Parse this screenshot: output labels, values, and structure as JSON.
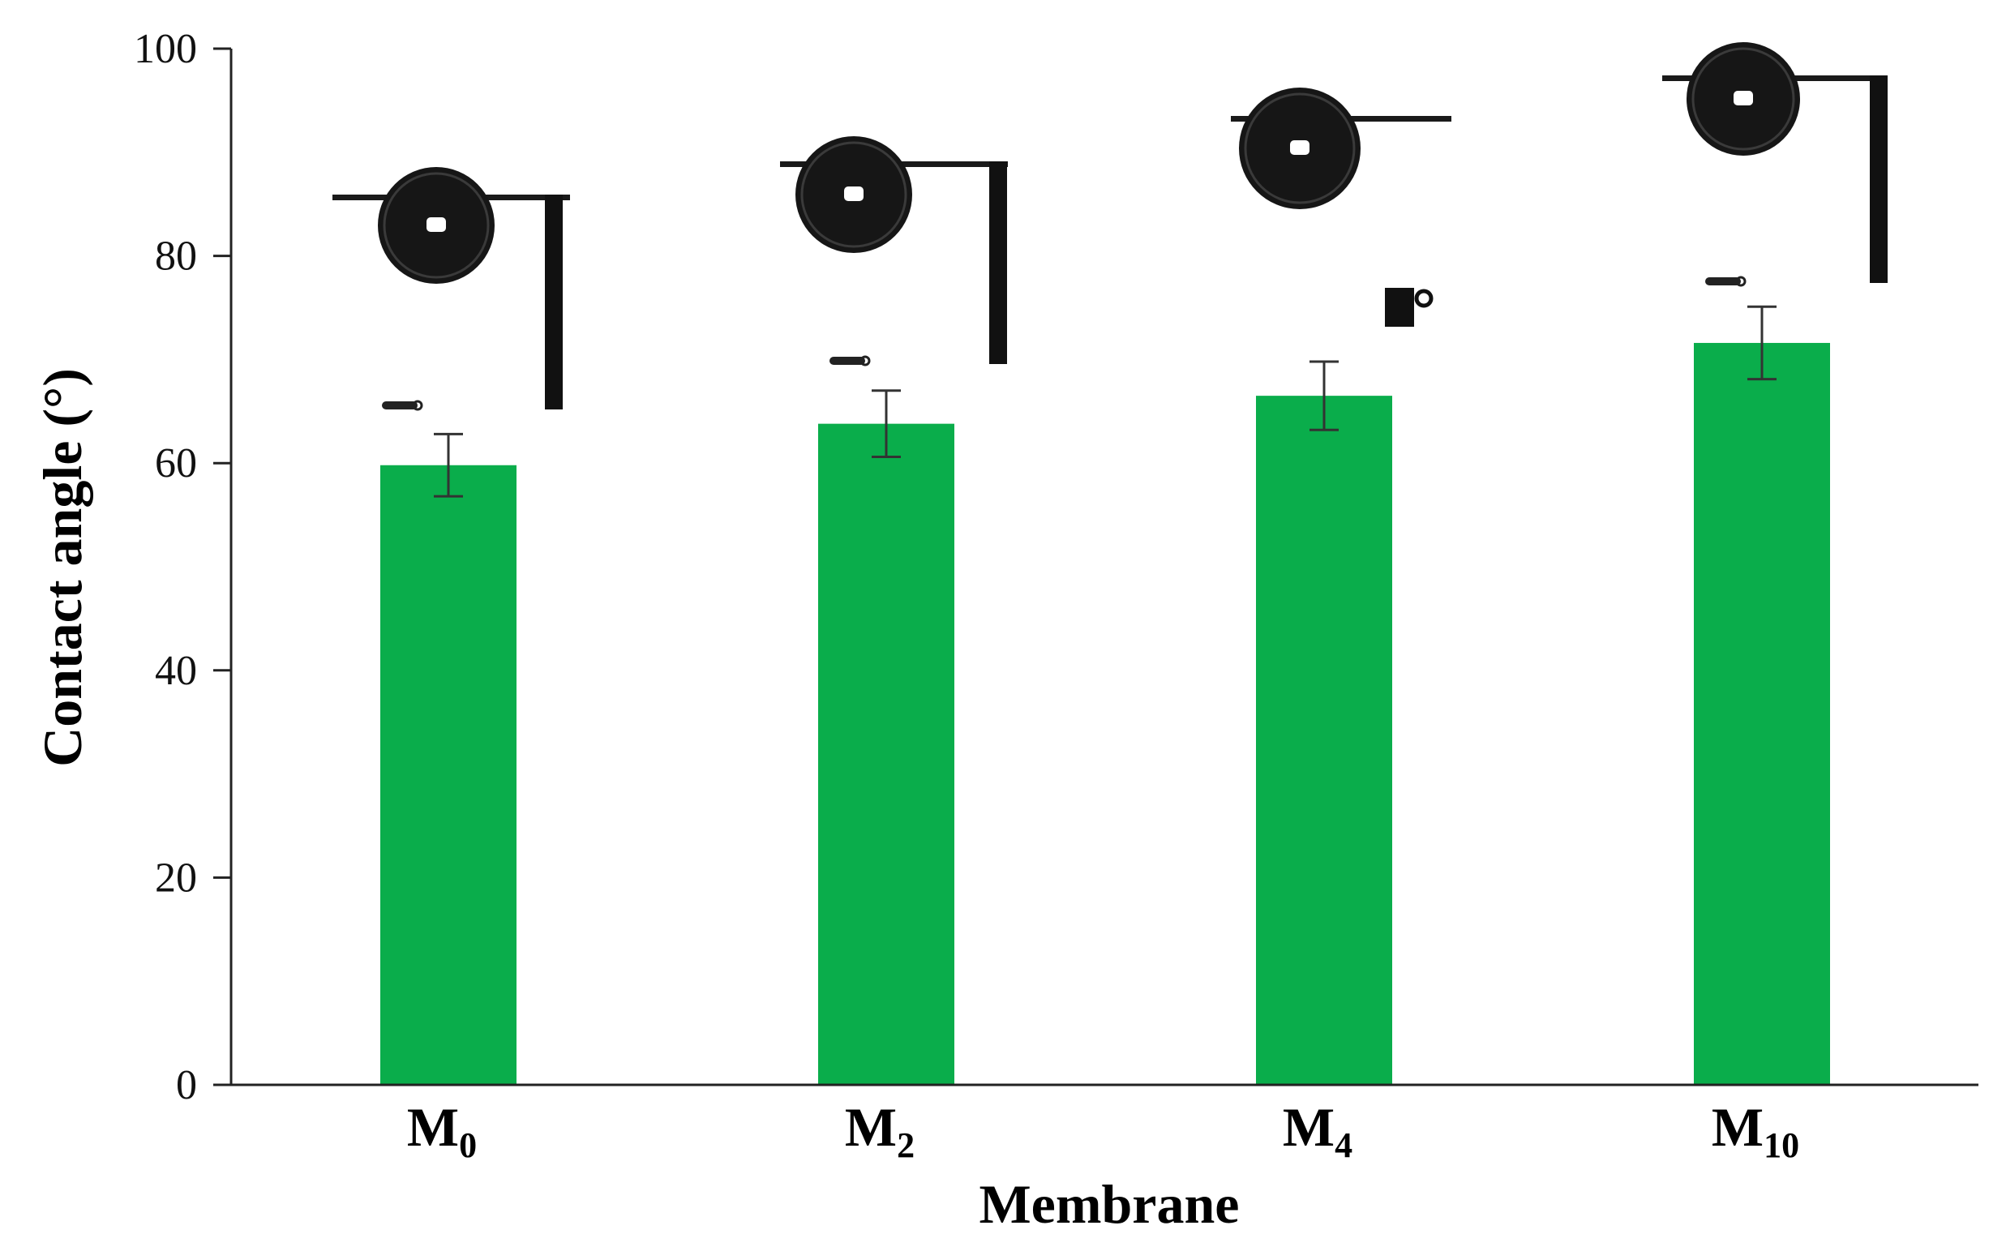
{
  "chart_data": {
    "type": "bar",
    "categories": [
      {
        "base": "M",
        "sub": "0"
      },
      {
        "base": "M",
        "sub": "2"
      },
      {
        "base": "M",
        "sub": "4"
      },
      {
        "base": "M",
        "sub": "10"
      }
    ],
    "values": [
      59.8,
      63.8,
      66.5,
      71.6
    ],
    "errors": [
      3.0,
      3.2,
      3.3,
      3.5
    ],
    "xlabel": "Membrane",
    "ylabel": "Contact angle (°)",
    "ylim": [
      0,
      100
    ],
    "yticks": [
      0,
      20,
      40,
      60,
      80,
      100
    ],
    "bar_color": "#0aad4b",
    "grid": false,
    "legend": "none"
  }
}
